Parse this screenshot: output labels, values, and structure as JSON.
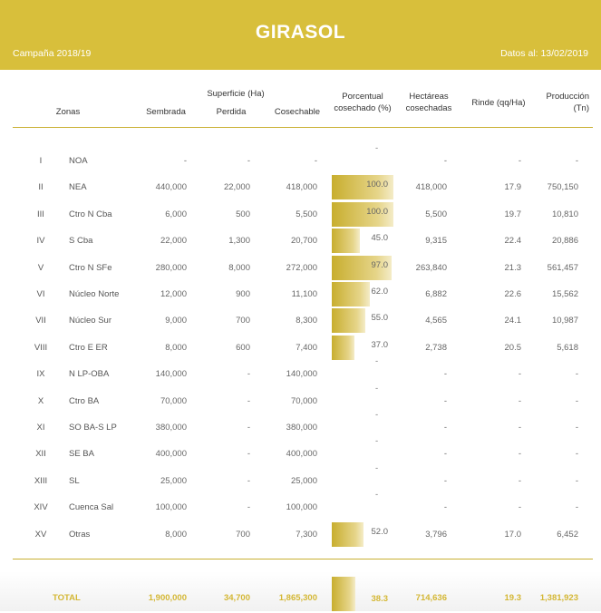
{
  "header": {
    "title": "GIRASOL",
    "campaign": "Campaña 2018/19",
    "date": "Datos al: 13/02/2019"
  },
  "columns": {
    "zones": "Zonas",
    "surface_group": "Superficie (Ha)",
    "sown": "Sembrada",
    "lost": "Perdida",
    "harvestable": "Cosechable",
    "pct_line1": "Porcentual",
    "pct_line2": "cosechado (%)",
    "hect_line1": "Hectáreas",
    "hect_line2": "cosechadas",
    "yield": "Rinde (qq/Ha)",
    "prod_line1": "Producción",
    "prod_line2": "(Tn)"
  },
  "rows": [
    {
      "num": "I",
      "zone": "NOA",
      "sown": "-",
      "lost": "-",
      "harv": "-",
      "pct": "-",
      "pct_value": null,
      "hect": "-",
      "yield": "-",
      "prod": "-"
    },
    {
      "num": "II",
      "zone": "NEA",
      "sown": "440,000",
      "lost": "22,000",
      "harv": "418,000",
      "pct": "100.0",
      "pct_value": 100.0,
      "hect": "418,000",
      "yield": "17.9",
      "prod": "750,150"
    },
    {
      "num": "III",
      "zone": "Ctro N Cba",
      "sown": "6,000",
      "lost": "500",
      "harv": "5,500",
      "pct": "100.0",
      "pct_value": 100.0,
      "hect": "5,500",
      "yield": "19.7",
      "prod": "10,810"
    },
    {
      "num": "IV",
      "zone": "S Cba",
      "sown": "22,000",
      "lost": "1,300",
      "harv": "20,700",
      "pct": "45.0",
      "pct_value": 45.0,
      "hect": "9,315",
      "yield": "22.4",
      "prod": "20,886"
    },
    {
      "num": "V",
      "zone": "Ctro N SFe",
      "sown": "280,000",
      "lost": "8,000",
      "harv": "272,000",
      "pct": "97.0",
      "pct_value": 97.0,
      "hect": "263,840",
      "yield": "21.3",
      "prod": "561,457"
    },
    {
      "num": "VI",
      "zone": "Núcleo Norte",
      "sown": "12,000",
      "lost": "900",
      "harv": "11,100",
      "pct": "62.0",
      "pct_value": 62.0,
      "hect": "6,882",
      "yield": "22.6",
      "prod": "15,562"
    },
    {
      "num": "VII",
      "zone": "Núcleo Sur",
      "sown": "9,000",
      "lost": "700",
      "harv": "8,300",
      "pct": "55.0",
      "pct_value": 55.0,
      "hect": "4,565",
      "yield": "24.1",
      "prod": "10,987"
    },
    {
      "num": "VIII",
      "zone": "Ctro E ER",
      "sown": "8,000",
      "lost": "600",
      "harv": "7,400",
      "pct": "37.0",
      "pct_value": 37.0,
      "hect": "2,738",
      "yield": "20.5",
      "prod": "5,618"
    },
    {
      "num": "IX",
      "zone": "N LP-OBA",
      "sown": "140,000",
      "lost": "-",
      "harv": "140,000",
      "pct": "-",
      "pct_value": null,
      "hect": "-",
      "yield": "-",
      "prod": "-"
    },
    {
      "num": "X",
      "zone": "Ctro BA",
      "sown": "70,000",
      "lost": "-",
      "harv": "70,000",
      "pct": "-",
      "pct_value": null,
      "hect": "-",
      "yield": "-",
      "prod": "-"
    },
    {
      "num": "XI",
      "zone": "SO BA-S LP",
      "sown": "380,000",
      "lost": "-",
      "harv": "380,000",
      "pct": "-",
      "pct_value": null,
      "hect": "-",
      "yield": "-",
      "prod": "-"
    },
    {
      "num": "XII",
      "zone": "SE BA",
      "sown": "400,000",
      "lost": "-",
      "harv": "400,000",
      "pct": "-",
      "pct_value": null,
      "hect": "-",
      "yield": "-",
      "prod": "-"
    },
    {
      "num": "XIII",
      "zone": "SL",
      "sown": "25,000",
      "lost": "-",
      "harv": "25,000",
      "pct": "-",
      "pct_value": null,
      "hect": "-",
      "yield": "-",
      "prod": "-"
    },
    {
      "num": "XIV",
      "zone": "Cuenca Sal",
      "sown": "100,000",
      "lost": "-",
      "harv": "100,000",
      "pct": "-",
      "pct_value": null,
      "hect": "-",
      "yield": "-",
      "prod": "-"
    },
    {
      "num": "XV",
      "zone": "Otras",
      "sown": "8,000",
      "lost": "700",
      "harv": "7,300",
      "pct": "52.0",
      "pct_value": 52.0,
      "hect": "3,796",
      "yield": "17.0",
      "prod": "6,452"
    }
  ],
  "total": {
    "label": "TOTAL",
    "sown": "1,900,000",
    "lost": "34,700",
    "harv": "1,865,300",
    "pct": "38.3",
    "pct_value": 38.3,
    "hect": "714,636",
    "yield": "19.3",
    "prod": "1,381,923"
  },
  "colors": {
    "accent": "#d8bf3b",
    "total_text": "#d4b734"
  }
}
